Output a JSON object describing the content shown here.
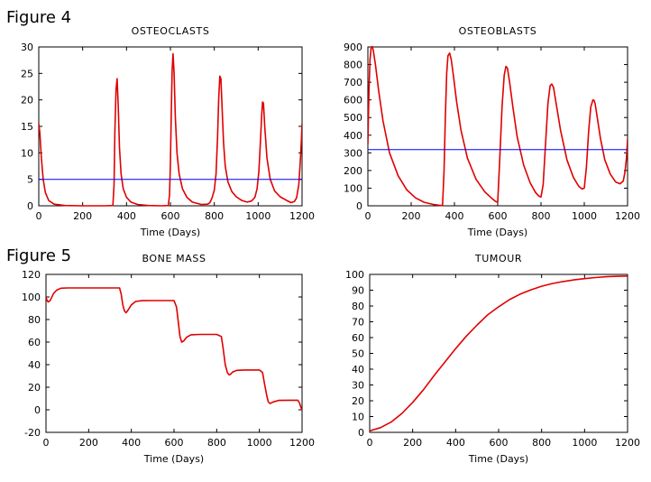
{
  "figure_labels": [
    "Figure 4",
    "Figure 5"
  ],
  "colors": {
    "model": "#e00000",
    "reference": "#0000ff",
    "axis": "#000000"
  },
  "chart_data": [
    {
      "type": "line",
      "title": "OSTEOCLASTS",
      "xlabel": "Time (Days)",
      "ylabel": "",
      "xlim": [
        0,
        1200
      ],
      "ylim": [
        0,
        30
      ],
      "xticks": [
        0,
        200,
        400,
        600,
        800,
        1000,
        1200
      ],
      "yticks": [
        0,
        5,
        10,
        15,
        20,
        25,
        30
      ],
      "grid": false,
      "series": [
        {
          "color": "#e00000",
          "x": [
            0,
            5,
            12,
            20,
            30,
            45,
            70,
            120,
            200,
            300,
            338,
            343,
            347,
            352,
            357,
            362,
            368,
            375,
            385,
            400,
            420,
            450,
            500,
            560,
            590,
            596,
            600,
            604,
            608,
            612,
            617,
            622,
            630,
            640,
            655,
            675,
            700,
            740,
            770,
            780,
            790,
            800,
            808,
            815,
            820,
            825,
            830,
            835,
            842,
            850,
            862,
            880,
            900,
            925,
            950,
            970,
            985,
            995,
            1003,
            1010,
            1016,
            1020,
            1024,
            1030,
            1040,
            1055,
            1075,
            1100,
            1130,
            1150,
            1165,
            1175,
            1185,
            1192,
            1197,
            1200
          ],
          "y": [
            15.5,
            13.8,
            9,
            5,
            2.5,
            1,
            0.3,
            0.05,
            0,
            0,
            0.05,
            4,
            14,
            22,
            24,
            19,
            11,
            6,
            3.2,
            1.6,
            0.7,
            0.25,
            0.05,
            0,
            0.05,
            2,
            8,
            18,
            25.5,
            28.7,
            25,
            17,
            10,
            6,
            3.2,
            1.6,
            0.7,
            0.25,
            0.3,
            0.6,
            1.5,
            3,
            6,
            13,
            20,
            24.5,
            24,
            19,
            12,
            7.5,
            4.5,
            2.7,
            1.7,
            1,
            0.7,
            0.9,
            1.6,
            3.2,
            6.5,
            12,
            17,
            19.6,
            19.4,
            15,
            9,
            5,
            2.8,
            1.7,
            1,
            0.6,
            0.8,
            1.5,
            4,
            8.5,
            12.5,
            15.5
          ]
        },
        {
          "color": "#0000ff",
          "x": [
            0,
            1200
          ],
          "y": [
            5,
            5
          ]
        }
      ]
    },
    {
      "type": "line",
      "title": "OSTEOBLASTS",
      "xlabel": "Time (Days)",
      "ylabel": "",
      "xlim": [
        0,
        1200
      ],
      "ylim": [
        0,
        900
      ],
      "xticks": [
        0,
        200,
        400,
        600,
        800,
        1000,
        1200
      ],
      "yticks": [
        0,
        100,
        200,
        300,
        400,
        500,
        600,
        700,
        800,
        900
      ],
      "grid": false,
      "series": [
        {
          "color": "#e00000",
          "x": [
            0,
            5,
            10,
            15,
            20,
            25,
            35,
            50,
            70,
            100,
            140,
            180,
            220,
            260,
            300,
            330,
            345,
            352,
            358,
            364,
            370,
            378,
            385,
            395,
            410,
            430,
            460,
            500,
            540,
            570,
            590,
            600,
            610,
            620,
            630,
            638,
            645,
            655,
            670,
            690,
            720,
            750,
            775,
            790,
            800,
            810,
            820,
            832,
            842,
            850,
            858,
            870,
            890,
            920,
            950,
            975,
            990,
            1000,
            1010,
            1020,
            1030,
            1040,
            1045,
            1050,
            1060,
            1075,
            1095,
            1120,
            1145,
            1165,
            1180,
            1188,
            1195,
            1200
          ],
          "y": [
            350,
            650,
            830,
            895,
            905,
            880,
            800,
            650,
            480,
            300,
            170,
            90,
            45,
            20,
            8,
            3,
            2,
            200,
            500,
            750,
            850,
            865,
            830,
            740,
            590,
            430,
            270,
            150,
            80,
            45,
            25,
            20,
            280,
            560,
            740,
            790,
            780,
            700,
            560,
            390,
            230,
            130,
            75,
            55,
            50,
            120,
            330,
            580,
            680,
            690,
            670,
            580,
            430,
            260,
            160,
            110,
            95,
            100,
            220,
            420,
            560,
            600,
            598,
            580,
            500,
            380,
            260,
            180,
            135,
            125,
            140,
            190,
            270,
            380
          ]
        },
        {
          "color": "#0000ff",
          "x": [
            0,
            1200
          ],
          "y": [
            318,
            318
          ]
        }
      ]
    },
    {
      "type": "line",
      "title": "BONE MASS",
      "xlabel": "Time (Days)",
      "ylabel": "",
      "xlim": [
        0,
        1200
      ],
      "ylim": [
        -20,
        120
      ],
      "xticks": [
        0,
        200,
        400,
        600,
        800,
        1000,
        1200
      ],
      "yticks": [
        -20,
        0,
        20,
        40,
        60,
        80,
        100,
        120
      ],
      "grid": false,
      "series": [
        {
          "color": "#e00000",
          "x": [
            0,
            5,
            10,
            20,
            35,
            50,
            70,
            100,
            200,
            345,
            352,
            360,
            368,
            375,
            385,
            400,
            420,
            450,
            500,
            600,
            612,
            620,
            628,
            636,
            645,
            660,
            680,
            720,
            800,
            822,
            830,
            840,
            850,
            858,
            865,
            875,
            895,
            930,
            1000,
            1015,
            1025,
            1035,
            1042,
            1050,
            1065,
            1090,
            1150,
            1180,
            1188,
            1195,
            1200
          ],
          "y": [
            100,
            97,
            95.5,
            97,
            103,
            106,
            107.8,
            108,
            108,
            108,
            103,
            93,
            87.5,
            86,
            88.5,
            93,
            96,
            96.7,
            96.8,
            96.8,
            91,
            78,
            65,
            60,
            61,
            64.5,
            66.5,
            66.8,
            66.8,
            65,
            55,
            40,
            33,
            31,
            31.5,
            33.5,
            35,
            35.3,
            35.3,
            33,
            22,
            12,
            7,
            5.5,
            7,
            8.3,
            8.5,
            8.5,
            6,
            2,
            -0.5
          ]
        }
      ]
    },
    {
      "type": "line",
      "title": "TUMOUR",
      "xlabel": "Time (Days)",
      "ylabel": "",
      "xlim": [
        0,
        1200
      ],
      "ylim": [
        0,
        100
      ],
      "xticks": [
        0,
        200,
        400,
        600,
        800,
        1000,
        1200
      ],
      "yticks": [
        0,
        10,
        20,
        30,
        40,
        50,
        60,
        70,
        80,
        90,
        100
      ],
      "grid": false,
      "series": [
        {
          "color": "#e00000",
          "x": [
            0,
            50,
            100,
            150,
            200,
            250,
            300,
            350,
            400,
            450,
            500,
            550,
            600,
            650,
            700,
            750,
            800,
            850,
            900,
            950,
            1000,
            1050,
            1100,
            1150,
            1200
          ],
          "y": [
            1,
            3,
            6.5,
            12,
            19,
            27,
            36,
            44.5,
            53,
            61,
            68,
            74.5,
            79.5,
            84,
            87.5,
            90.2,
            92.5,
            94.2,
            95.5,
            96.5,
            97.3,
            98,
            98.5,
            98.8,
            99
          ]
        }
      ]
    }
  ]
}
